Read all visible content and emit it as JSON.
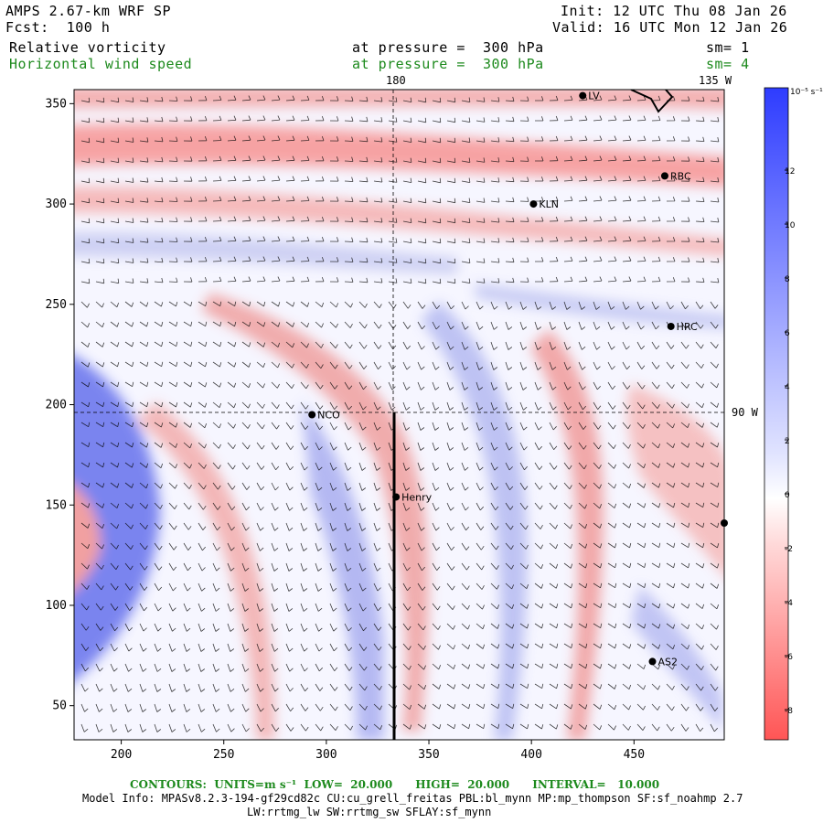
{
  "header": {
    "model": "AMPS 2.67-km WRF SP",
    "forecast": "Fcst:  100 h",
    "init": "Init: 12 UTC Thu 08 Jan 26",
    "valid": "Valid: 16 UTC Mon 12 Jan 26",
    "field1": "Relative vorticity",
    "field1_level": "at pressure =  300 hPa",
    "field1_smooth": "sm= 1",
    "field2": "Horizontal wind speed",
    "field2_level": "at pressure =  300 hPa",
    "field2_smooth": "sm= 4"
  },
  "map": {
    "lon_labels": {
      "top_180": "180",
      "top_135w": "135 W",
      "right_90w": "90 W"
    },
    "x_ticks": [
      "200",
      "250",
      "300",
      "350",
      "400",
      "450"
    ],
    "y_ticks": [
      "350",
      "300",
      "250",
      "200",
      "150",
      "100",
      "50"
    ],
    "stations": [
      {
        "name": "KLN",
        "x": 401,
        "y": 300
      },
      {
        "name": "RBC",
        "x": 465,
        "y": 314
      },
      {
        "name": "HRC",
        "x": 468,
        "y": 239
      },
      {
        "name": "NCO",
        "x": 293,
        "y": 195
      },
      {
        "name": "Henry",
        "x": 334,
        "y": 154
      },
      {
        "name": "AS2",
        "x": 459,
        "y": 72
      },
      {
        "name": "LV",
        "x": 425,
        "y": 354
      },
      {
        "name": "",
        "x": 494,
        "y": 141
      }
    ]
  },
  "colorbar": {
    "units": "10⁻⁵ s⁻¹",
    "labels": [
      "12",
      "10",
      "8",
      "6",
      "4",
      "2",
      "0",
      "-2",
      "-4",
      "-6",
      "-8"
    ],
    "colors": {
      "positive": "#1e3cff",
      "negative": "#ff5050",
      "zero": "#ffffff"
    }
  },
  "footer": {
    "contours": "CONTOURS:  UNITS=m s⁻¹  LOW=  20.000      HIGH=  20.000      INTERVAL=   10.000",
    "model_info": "Model Info: MPASv8.2.3-194-gf29cd82c CU:cu_grell_freitas PBL:bl_mynn MP:mp_thompson SF:sf_noahmp 2.7",
    "model_info2": "LW:rrtmg_lw SW:rrtmg_sw SFLAY:sf_mynn"
  }
}
